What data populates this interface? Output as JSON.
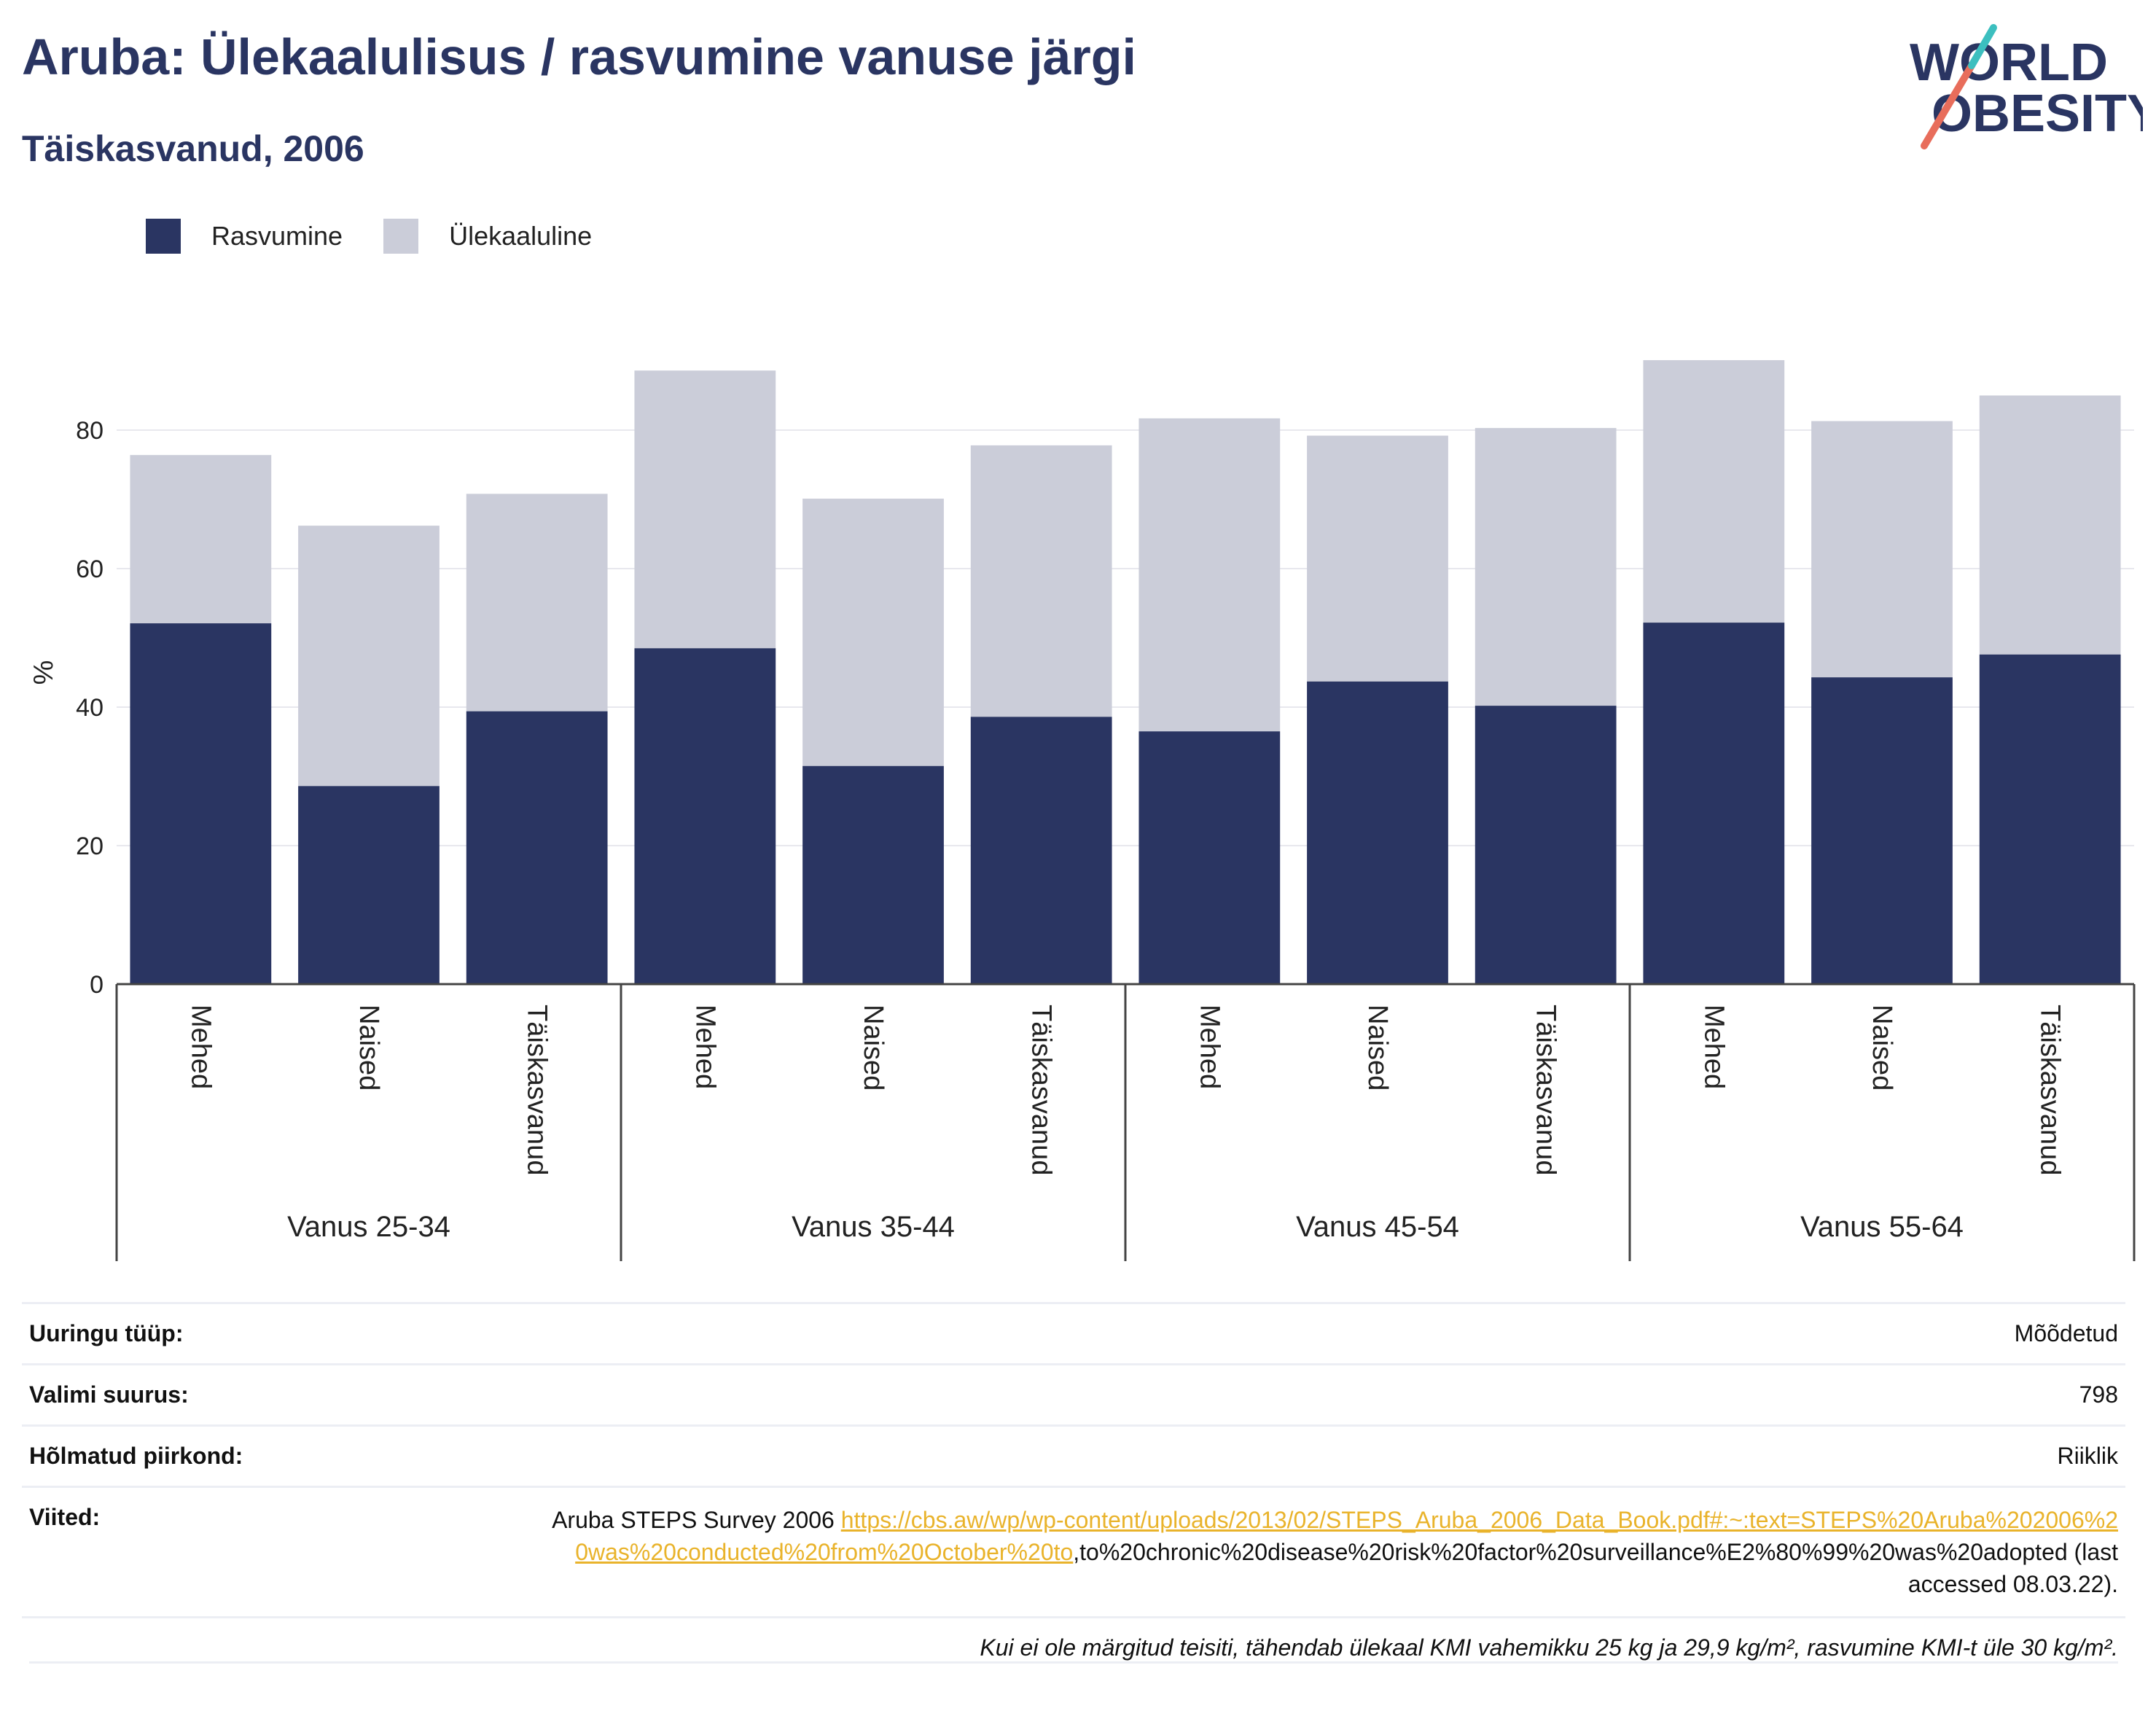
{
  "header": {
    "title": "Aruba: Ülekaalulisus / rasvumine vanuse järgi",
    "subtitle": "Täiskasvanud, 2006"
  },
  "logo": {
    "line1": "WORLD",
    "line2": "OBESITY"
  },
  "legend": {
    "items": [
      {
        "label": "Rasvumine",
        "color": "#2a3562"
      },
      {
        "label": "Ülekaaluline",
        "color": "#cbcdd9"
      }
    ]
  },
  "chart_data": {
    "type": "bar",
    "stacked": true,
    "ylabel": "%",
    "ylim": [
      0,
      100
    ],
    "yticks": [
      0,
      20,
      40,
      60,
      80
    ],
    "grid": true,
    "legend_position": "top-left",
    "groups": [
      "Vanus 25-34",
      "Vanus 35-44",
      "Vanus 45-54",
      "Vanus 55-64"
    ],
    "categories": [
      "Mehed",
      "Naised",
      "Täiskasvanud",
      "Mehed",
      "Naised",
      "Täiskasvanud",
      "Mehed",
      "Naised",
      "Täiskasvanud",
      "Mehed",
      "Naised",
      "Täiskasvanud"
    ],
    "series": [
      {
        "name": "Rasvumine",
        "color": "#2a3562",
        "values": [
          52.1,
          28.6,
          39.4,
          48.5,
          31.5,
          38.6,
          36.5,
          43.7,
          40.2,
          52.2,
          44.3,
          47.6
        ]
      },
      {
        "name": "Ülekaaluline",
        "color": "#cbcdd9",
        "values": [
          24.3,
          37.6,
          31.4,
          40.1,
          38.6,
          39.2,
          45.2,
          35.5,
          40.1,
          37.9,
          37.0,
          37.4
        ]
      }
    ]
  },
  "info": {
    "survey_type": {
      "label": "Uuringu tüüp:",
      "value": "Mõõdetud"
    },
    "sample_size": {
      "label": "Valimi suurus:",
      "value": "798"
    },
    "area": {
      "label": "Hõlmatud piirkond:",
      "value": "Riiklik"
    },
    "references": {
      "label": "Viited:",
      "prefix": "Aruba STEPS Survey 2006 ",
      "link": "https://cbs.aw/wp/wp-content/uploads/2013/02/STEPS_Aruba_2006_Data_Book.pdf#:~:text=STEPS%20Aruba%202006%20was%20conducted%20from%20October%20to",
      "suffix": ",to%20chronic%20disease%20risk%20factor%20surveillance%E2%80%99%20was%20adopted (last accessed 08.03.22)."
    },
    "footnote": "Kui ei ole märgitud teisiti, tähendab ülekaal KMI vahemikku 25 kg ja 29,9 kg/m², rasvumine KMI-t üle 30 kg/m²."
  }
}
